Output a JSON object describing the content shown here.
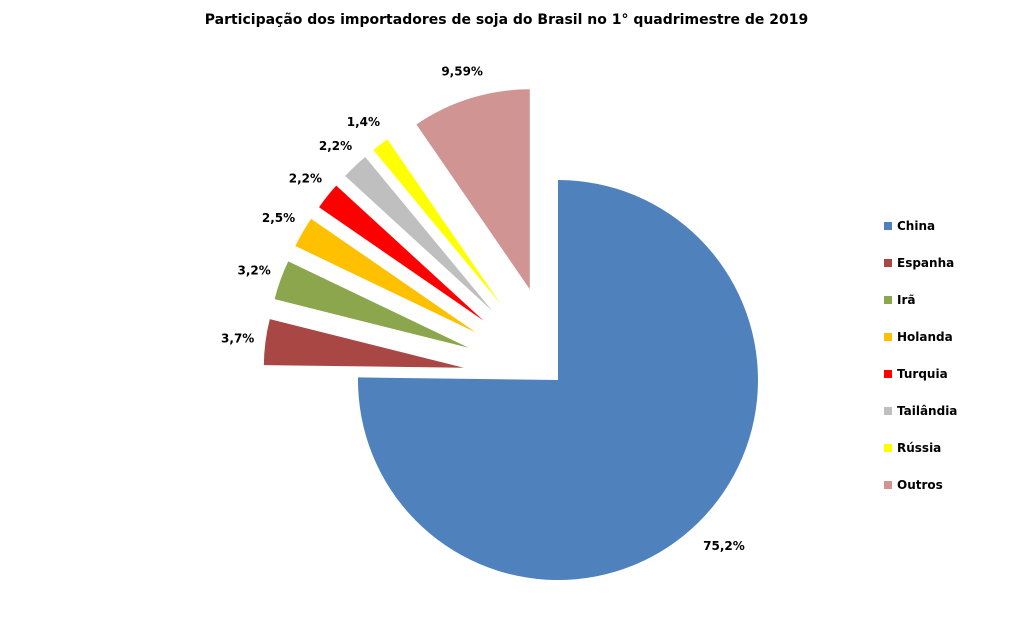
{
  "chart_data": {
    "type": "pie",
    "title": "Participação dos importadores de soja do Brasil no 1° quadrimestre de 2019",
    "categories": [
      "China",
      "Espanha",
      "Irã",
      "Holanda",
      "Turquia",
      "Tailândia",
      "Rússia",
      "Outros"
    ],
    "values": [
      75.2,
      3.7,
      3.2,
      2.5,
      2.2,
      2.2,
      1.4,
      9.59
    ],
    "data_labels": [
      "75,2%",
      "3,7%",
      "3,2%",
      "2,5%",
      "2,2%",
      "2,2%",
      "1,4%",
      "9,59%"
    ],
    "colors": [
      "#4F81BD",
      "#A94744",
      "#8BA64C",
      "#FFC000",
      "#FF0000",
      "#BFBFBF",
      "#FFFF00",
      "#D09492"
    ],
    "legend_position": "right"
  }
}
